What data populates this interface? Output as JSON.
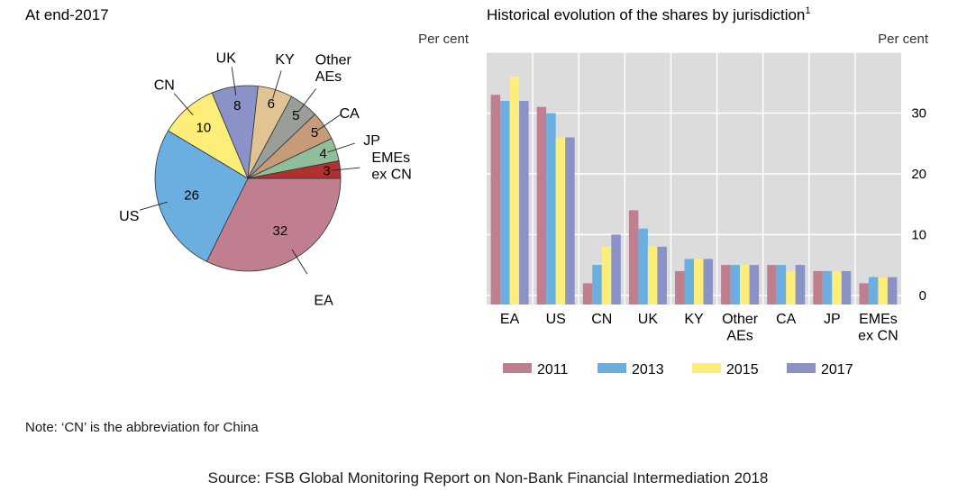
{
  "colors": {
    "pie": {
      "EA": "#c07f8f",
      "US": "#6baee0",
      "CN": "#fcee78",
      "UK": "#8a92c7",
      "KY": "#e2c394",
      "Other AEs": "#999e99",
      "CA": "#c79a7a",
      "JP": "#8fbf9a",
      "EMEs ex CN": "#b23030"
    },
    "series": {
      "2011": "#c07f8f",
      "2013": "#6baee0",
      "2015": "#fcee78",
      "2017": "#8a92c7"
    },
    "plot_bg": "#dcdcdc",
    "grid": "#ffffff"
  },
  "note": "Note: ‘CN’ is the abbreviation for China",
  "source": "Source: FSB Global Monitoring Report on Non-Bank Financial Intermediation 2018",
  "chart_data": [
    {
      "type": "pie",
      "title": "At end-2017",
      "unit_label": "Per cent",
      "slices": [
        {
          "label": "EA",
          "value": 32,
          "lines": [
            "EA"
          ]
        },
        {
          "label": "US",
          "value": 26,
          "lines": [
            "US"
          ]
        },
        {
          "label": "CN",
          "value": 10,
          "lines": [
            "CN"
          ]
        },
        {
          "label": "UK",
          "value": 8,
          "lines": [
            "UK"
          ]
        },
        {
          "label": "KY",
          "value": 6,
          "lines": [
            "KY"
          ]
        },
        {
          "label": "Other AEs",
          "value": 5,
          "lines": [
            "Other",
            "AEs"
          ]
        },
        {
          "label": "CA",
          "value": 5,
          "lines": [
            "CA"
          ]
        },
        {
          "label": "JP",
          "value": 4,
          "lines": [
            "JP"
          ]
        },
        {
          "label": "EMEs ex CN",
          "value": 3,
          "lines": [
            "EMEs",
            "ex CN"
          ]
        }
      ]
    },
    {
      "type": "bar",
      "title": "Historical evolution of the shares by jurisdiction",
      "title_sup": "1",
      "unit_label": "Per cent",
      "categories": [
        "EA",
        "US",
        "CN",
        "UK",
        "KY",
        "Other AEs",
        "CA",
        "JP",
        "EMEs ex CN"
      ],
      "category_lines": [
        [
          "EA"
        ],
        [
          "US"
        ],
        [
          "CN"
        ],
        [
          "UK"
        ],
        [
          "KY"
        ],
        [
          "Other",
          "AEs"
        ],
        [
          "CA"
        ],
        [
          "JP"
        ],
        [
          "EMEs",
          "ex CN"
        ]
      ],
      "series": [
        {
          "name": "2011",
          "values": [
            33,
            31,
            2,
            14,
            4,
            5,
            5,
            4,
            2
          ]
        },
        {
          "name": "2013",
          "values": [
            32,
            30,
            5,
            11,
            6,
            5,
            5,
            4,
            3
          ]
        },
        {
          "name": "2015",
          "values": [
            36,
            26,
            8,
            8,
            6,
            5,
            4,
            4,
            3
          ]
        },
        {
          "name": "2017",
          "values": [
            32,
            26,
            10,
            8,
            6,
            5,
            5,
            4,
            3
          ]
        }
      ],
      "ylim": [
        -1.5,
        40
      ],
      "yticks": [
        0,
        10,
        20,
        30
      ],
      "y_axis_side": "right",
      "grid": true,
      "legend_position": "bottom"
    }
  ]
}
